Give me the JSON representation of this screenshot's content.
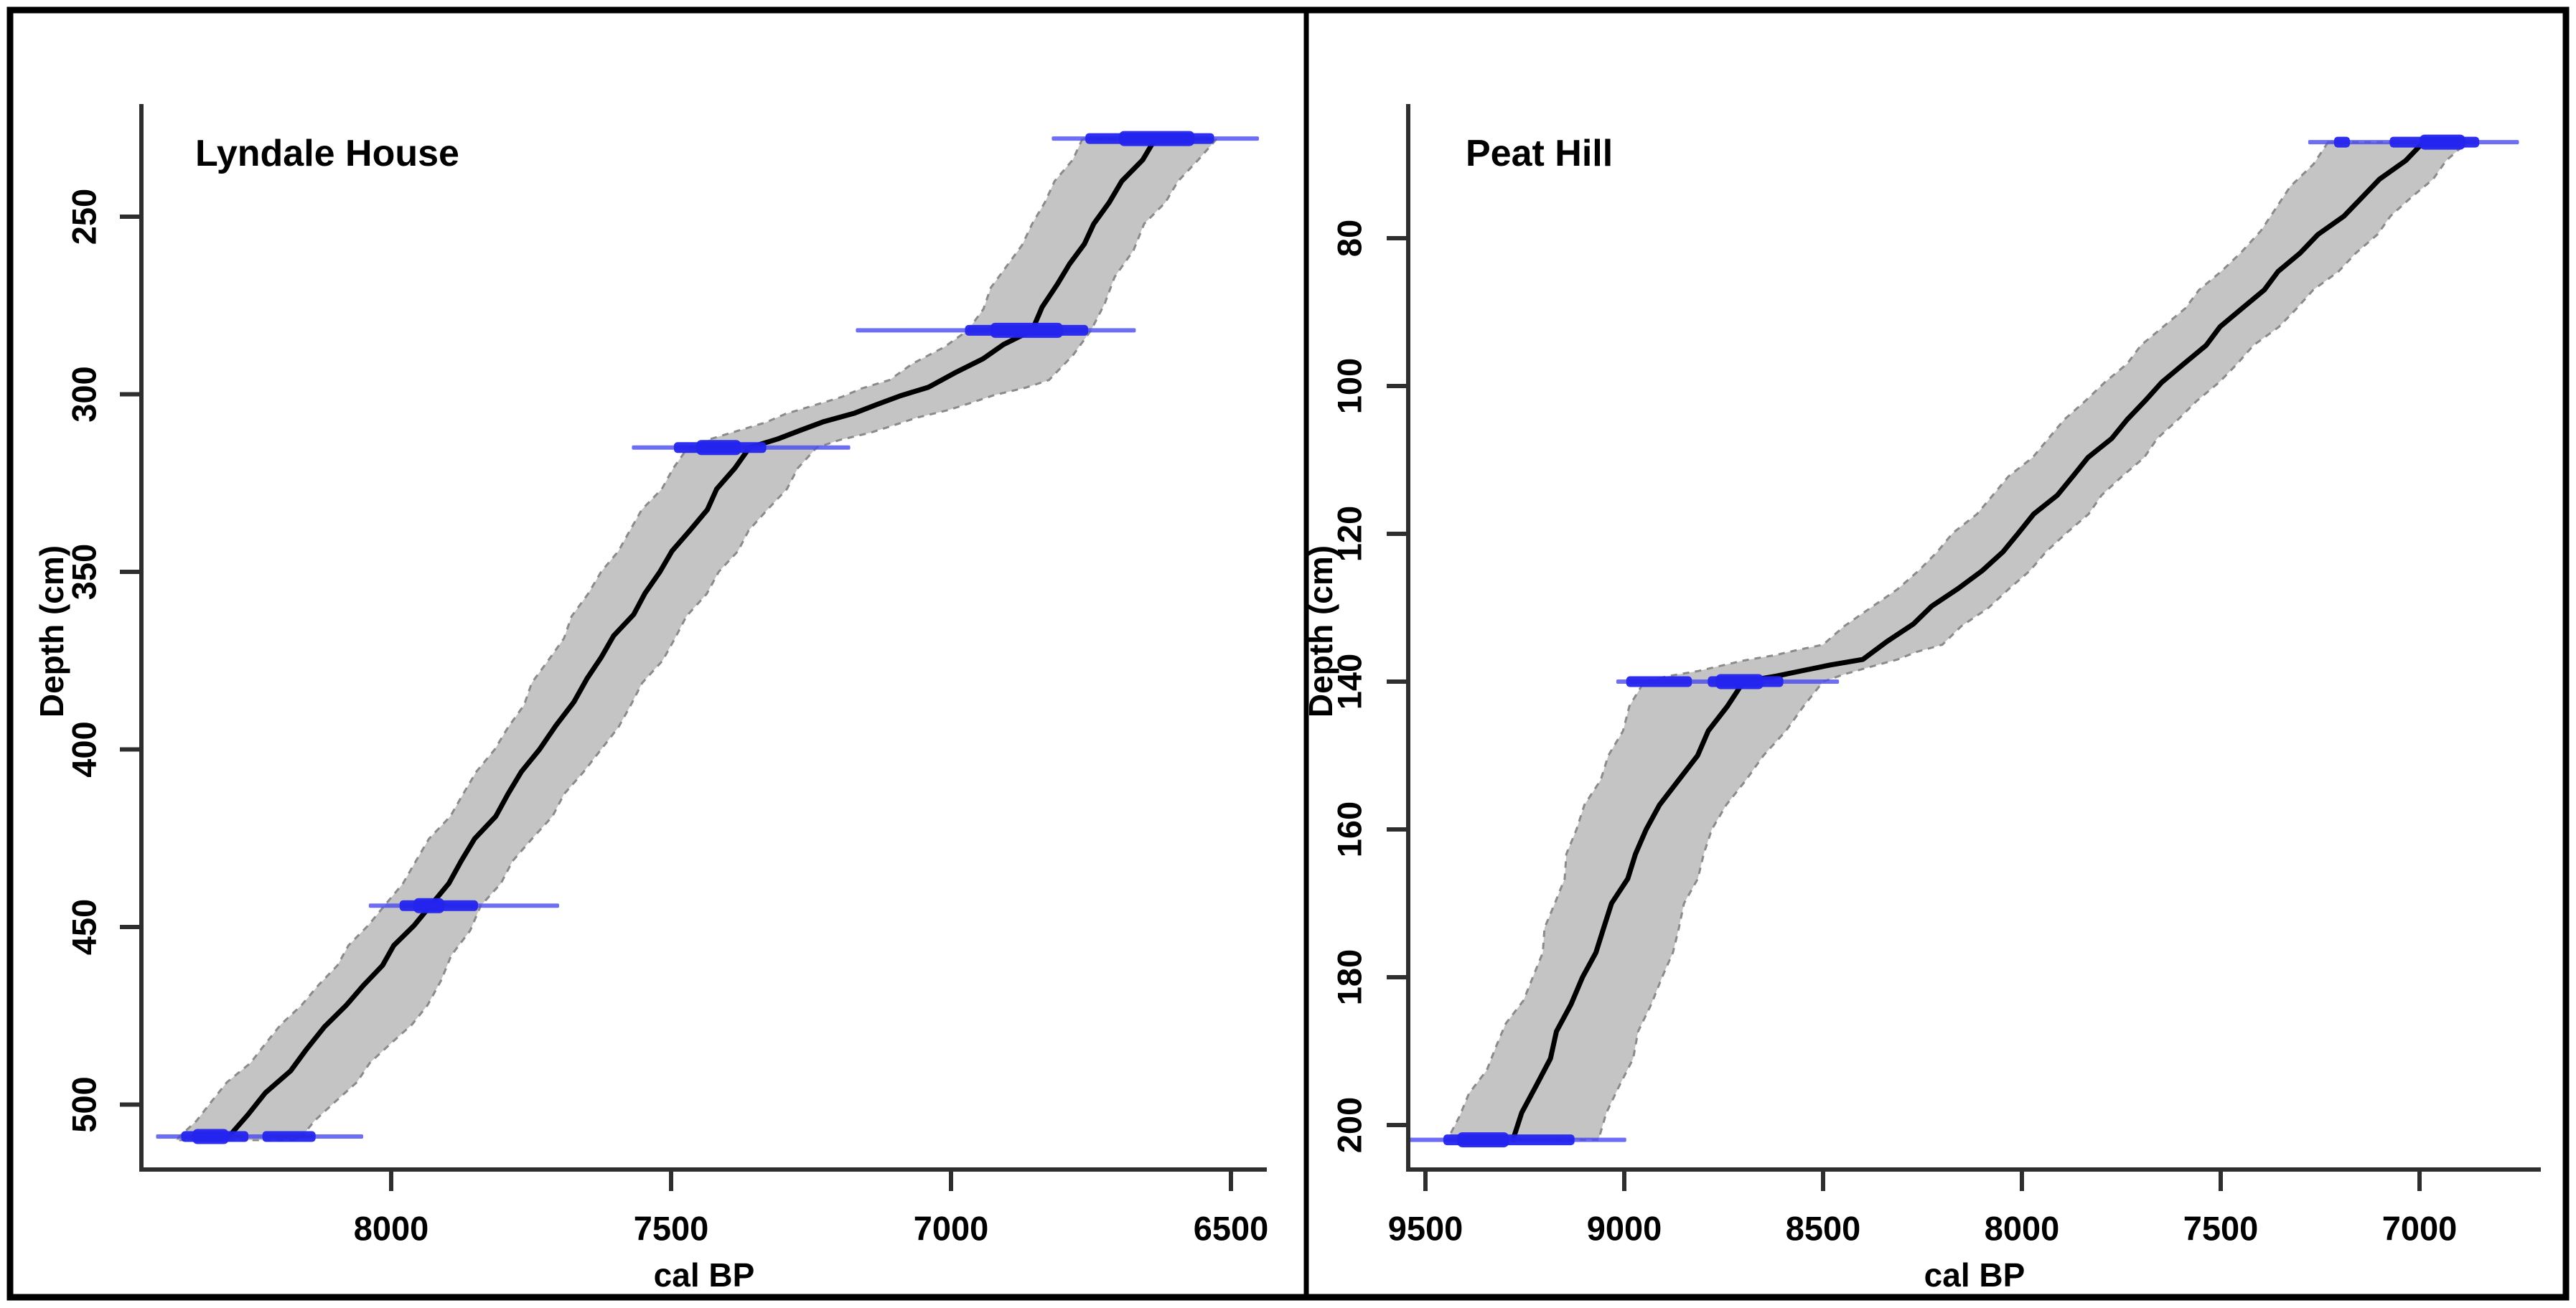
{
  "meta": {
    "figure_type": "age-depth models, two panels",
    "colors": {
      "background": "#ffffff",
      "border": "#000000",
      "axis": "#2e2e2e",
      "tick_text": "#000000",
      "envelope_fill": "#c2c2c2",
      "envelope_edge": "#8a8a8a",
      "median_line": "#000000",
      "date_line": "#4a4af2",
      "date_blob": "#2424ee"
    }
  },
  "chart_data": [
    {
      "type": "area",
      "id": "lyndale-house",
      "title": "Lyndale House",
      "xlabel": "cal BP",
      "ylabel": "Depth (cm)",
      "x_ticks": [
        8000,
        7500,
        7000,
        6500
      ],
      "y_ticks": [
        250,
        300,
        350,
        400,
        450,
        500
      ],
      "xlim": [
        8450,
        6435
      ],
      "ylim": [
        218,
        517
      ],
      "x_axis_reversed": true,
      "grid": false,
      "legend": "none",
      "median": [
        [
          228,
          6635
        ],
        [
          252,
          6745
        ],
        [
          269,
          6810
        ],
        [
          282,
          6855
        ],
        [
          298,
          7040
        ],
        [
          315,
          7360
        ],
        [
          350,
          7520
        ],
        [
          380,
          7650
        ],
        [
          400,
          7735
        ],
        [
          444,
          7930
        ],
        [
          472,
          8080
        ],
        [
          509,
          8290
        ]
      ],
      "envelope": [
        [
          228,
          6765,
          6525
        ],
        [
          252,
          6855,
          6655
        ],
        [
          282,
          6970,
          6750
        ],
        [
          296,
          7110,
          6825
        ],
        [
          315,
          7470,
          7240
        ],
        [
          350,
          7625,
          7415
        ],
        [
          400,
          7815,
          7625
        ],
        [
          444,
          8012,
          7840
        ],
        [
          472,
          8160,
          7935
        ],
        [
          510,
          8385,
          8165
        ]
      ],
      "dated_levels": [
        {
          "depth": 228,
          "line": [
            6820,
            6450
          ],
          "thick": [
            [
              6760,
              6530
            ]
          ],
          "peak": [
            [
              6700,
              6565
            ]
          ],
          "median_age": 6635
        },
        {
          "depth": 282,
          "line": [
            7170,
            6670
          ],
          "thick": [
            [
              6975,
              6755
            ]
          ],
          "peak": [
            [
              6930,
              6800
            ]
          ],
          "median_age": 6855
        },
        {
          "depth": 315,
          "line": [
            7570,
            7180
          ],
          "thick": [
            [
              7495,
              7330
            ]
          ],
          "peak": [
            [
              7455,
              7375
            ]
          ],
          "median_age": 7360
        },
        {
          "depth": 444,
          "line": [
            8040,
            7700
          ],
          "thick": [
            [
              7985,
              7845
            ]
          ],
          "peak": [
            [
              7960,
              7905
            ]
          ],
          "median_age": 7930
        },
        {
          "depth": 509,
          "line": [
            8420,
            8050
          ],
          "thick": [
            [
              8375,
              8255
            ],
            [
              8230,
              8135
            ]
          ],
          "peak": [
            [
              8355,
              8290
            ]
          ],
          "median_age": 8290
        }
      ]
    },
    {
      "type": "area",
      "id": "peat-hill",
      "title": "Peat Hill",
      "xlabel": "cal BP",
      "ylabel": "Depth (cm)",
      "x_ticks": [
        9500,
        9000,
        8500,
        8000,
        7500,
        7000
      ],
      "y_ticks": [
        80,
        100,
        120,
        140,
        160,
        180,
        200
      ],
      "xlim": [
        9550,
        6695
      ],
      "ylim": [
        63,
        207
      ],
      "x_axis_reversed": true,
      "grid": false,
      "legend": "none",
      "median": [
        [
          67,
          6990
        ],
        [
          82,
          7300
        ],
        [
          102,
          7690
        ],
        [
          125,
          8100
        ],
        [
          137,
          8400
        ],
        [
          140,
          8700
        ],
        [
          160,
          8945
        ],
        [
          180,
          9105
        ],
        [
          202,
          9280
        ]
      ],
      "envelope": [
        [
          67,
          7230,
          6880
        ],
        [
          82,
          7450,
          7160
        ],
        [
          102,
          7840,
          7560
        ],
        [
          125,
          8260,
          7980
        ],
        [
          135,
          8500,
          8200
        ],
        [
          140,
          8950,
          8500
        ],
        [
          150,
          9040,
          8650
        ],
        [
          160,
          9120,
          8780
        ],
        [
          180,
          9230,
          8905
        ],
        [
          202,
          9445,
          9065
        ]
      ],
      "dated_levels": [
        {
          "depth": 67,
          "line": [
            7280,
            6750
          ],
          "thick": [
            [
              7215,
              7175
            ],
            [
              7075,
              6850
            ]
          ],
          "peak": [
            [
              7000,
              6885
            ]
          ],
          "median_age": 6990
        },
        {
          "depth": 140,
          "line": [
            9020,
            8460
          ],
          "thick": [
            [
              8995,
              8830
            ],
            [
              8790,
              8600
            ]
          ],
          "peak": [
            [
              8770,
              8650
            ]
          ],
          "median_age": 8700
        },
        {
          "depth": 202,
          "line": [
            9545,
            8995
          ],
          "thick": [
            [
              9455,
              9125
            ]
          ],
          "peak": [
            [
              9420,
              9290
            ]
          ],
          "median_age": 9280
        }
      ]
    }
  ]
}
